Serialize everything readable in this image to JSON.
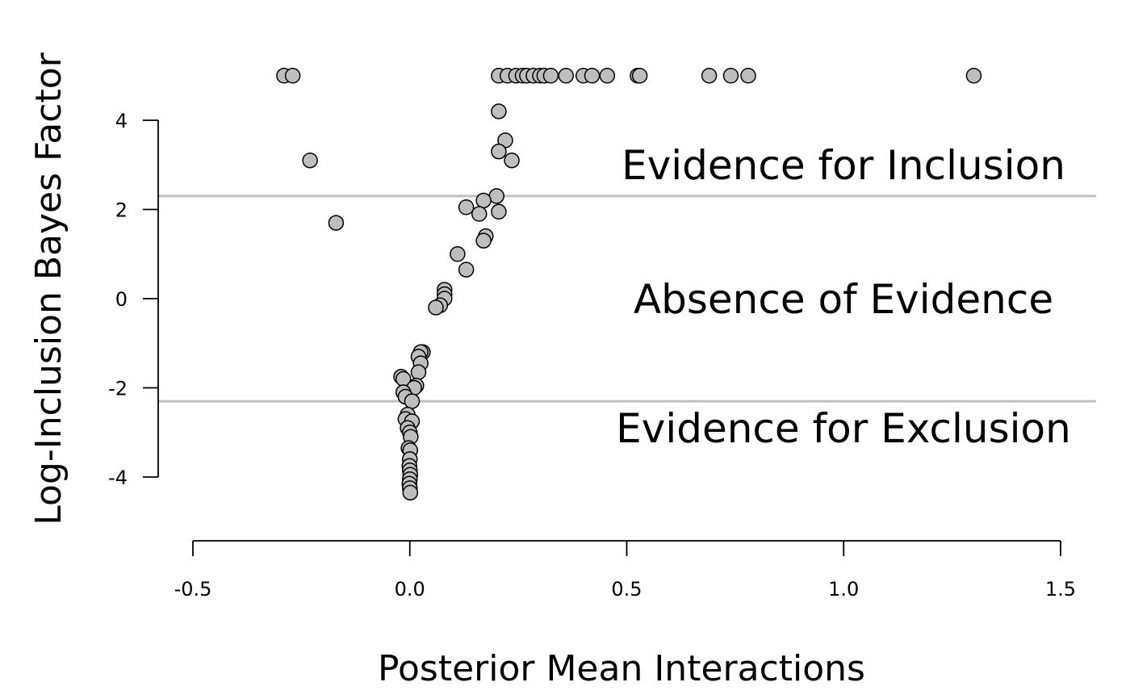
{
  "chart_data": {
    "type": "scatter",
    "xlabel": "Posterior Mean Interactions",
    "ylabel": "Log-Inclusion Bayes Factor",
    "xlim": [
      -0.5,
      1.5
    ],
    "ylim": [
      -4,
      4
    ],
    "x_ticks": [
      -0.5,
      0.0,
      0.5,
      1.0,
      1.5
    ],
    "x_tick_labels": [
      "-0.5",
      "0.0",
      "0.5",
      "1.0",
      "1.5"
    ],
    "y_ticks": [
      -4,
      -2,
      0,
      2,
      4
    ],
    "y_tick_labels": [
      "-4",
      "-2",
      "0",
      "2",
      "4"
    ],
    "grid": false,
    "thresholds": [
      2.3,
      -2.3
    ],
    "threshold_color": "#c0c0c0",
    "point_fill": "#bebebe",
    "point_stroke": "#000000",
    "region_labels": {
      "inclusion": "Evidence for Inclusion",
      "absence": "Absence of Evidence",
      "exclusion": "Evidence for Exclusion"
    },
    "points": [
      [
        -0.29,
        5
      ],
      [
        -0.27,
        5
      ],
      [
        -0.23,
        3.1
      ],
      [
        -0.17,
        1.7
      ],
      [
        0.205,
        5
      ],
      [
        0.225,
        5
      ],
      [
        0.245,
        5
      ],
      [
        0.26,
        5
      ],
      [
        0.27,
        5
      ],
      [
        0.285,
        5
      ],
      [
        0.3,
        5
      ],
      [
        0.31,
        5
      ],
      [
        0.325,
        5
      ],
      [
        0.36,
        5
      ],
      [
        0.4,
        5
      ],
      [
        0.42,
        5
      ],
      [
        0.455,
        5
      ],
      [
        0.525,
        5
      ],
      [
        0.53,
        5
      ],
      [
        0.69,
        5
      ],
      [
        0.74,
        5
      ],
      [
        0.78,
        5
      ],
      [
        1.3,
        5
      ],
      [
        0.205,
        4.2
      ],
      [
        0.22,
        3.55
      ],
      [
        0.205,
        3.3
      ],
      [
        0.235,
        3.1
      ],
      [
        0.2,
        2.3
      ],
      [
        0.17,
        2.2
      ],
      [
        0.13,
        2.05
      ],
      [
        0.16,
        1.9
      ],
      [
        0.205,
        1.95
      ],
      [
        0.175,
        1.4
      ],
      [
        0.17,
        1.3
      ],
      [
        0.11,
        1.0
      ],
      [
        0.13,
        0.65
      ],
      [
        0.08,
        0.2
      ],
      [
        0.08,
        0.1
      ],
      [
        0.08,
        0.0
      ],
      [
        0.07,
        -0.15
      ],
      [
        0.06,
        -0.2
      ],
      [
        0.03,
        -1.2
      ],
      [
        0.025,
        -1.2
      ],
      [
        0.02,
        -1.3
      ],
      [
        0.025,
        -1.45
      ],
      [
        0.02,
        -1.65
      ],
      [
        -0.02,
        -1.75
      ],
      [
        -0.015,
        -1.8
      ],
      [
        0.015,
        -1.95
      ],
      [
        0.01,
        -2.0
      ],
      [
        -0.015,
        -2.1
      ],
      [
        -0.01,
        -2.2
      ],
      [
        0.005,
        -2.3
      ],
      [
        -0.005,
        -2.6
      ],
      [
        -0.01,
        -2.7
      ],
      [
        0.005,
        -2.75
      ],
      [
        -0.005,
        -2.9
      ],
      [
        0.0,
        -3.0
      ],
      [
        0.002,
        -3.1
      ],
      [
        -0.003,
        -3.35
      ],
      [
        0.001,
        -3.4
      ],
      [
        0.0,
        -3.6
      ],
      [
        -0.001,
        -3.75
      ],
      [
        0.0,
        -3.85
      ],
      [
        0.001,
        -3.95
      ],
      [
        0.0,
        -4.05
      ],
      [
        -0.001,
        -4.15
      ],
      [
        0.0,
        -4.25
      ],
      [
        0.001,
        -4.35
      ]
    ]
  }
}
